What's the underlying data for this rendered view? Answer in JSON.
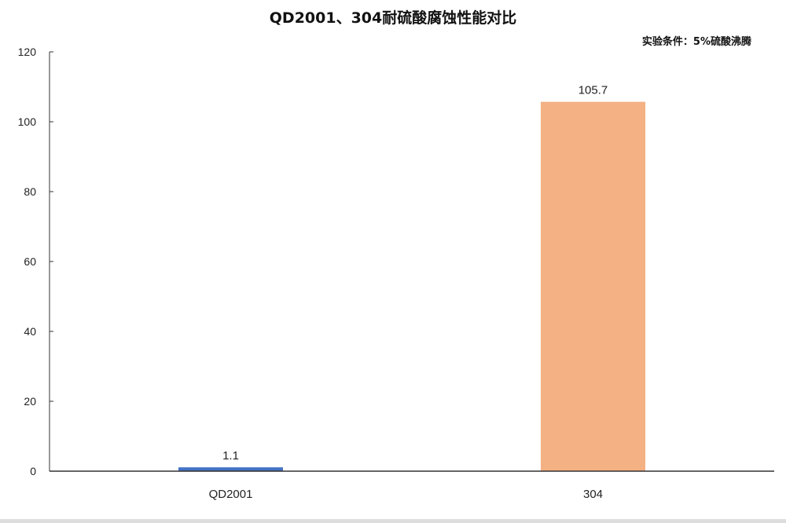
{
  "chart_data": {
    "type": "bar",
    "title": "QD2001、304耐硫酸腐蚀性能对比",
    "annotation": "实验条件：5%硫酸沸腾",
    "categories": [
      "QD2001",
      "304"
    ],
    "values": [
      1.1,
      105.7
    ],
    "data_labels": [
      "1.1",
      "105.7"
    ],
    "colors": [
      "#4472c4",
      "#f4b183"
    ],
    "xlabel": "",
    "ylabel": "",
    "ylim": [
      0,
      120
    ],
    "yticks": [
      0,
      20,
      40,
      60,
      80,
      100,
      120
    ],
    "grid": false,
    "legend": "none"
  }
}
